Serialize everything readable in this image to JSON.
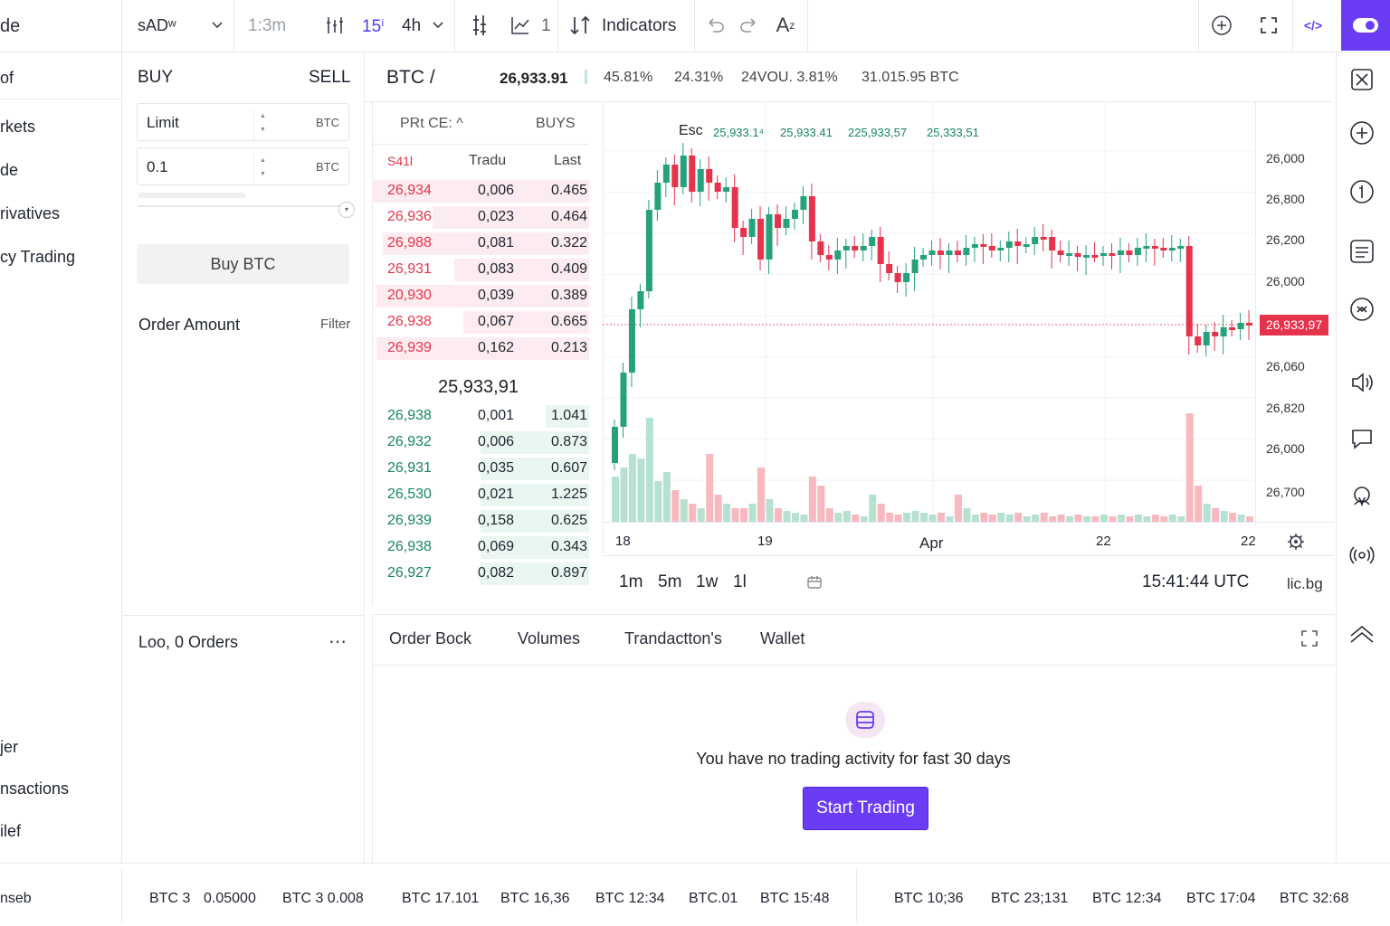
{
  "topbar": {
    "brand_partial": "de",
    "pair": "sADʷ",
    "search_placeholder": "1:3m",
    "interval_active": "15ⁱ",
    "interval_4h": "4h",
    "chart_type_count": "1",
    "indicators_label": "Indicators"
  },
  "nav": {
    "items": [
      "of",
      "rkets",
      "de",
      "rivatives",
      "cy Trading",
      "jer",
      "nsactions",
      "ilef",
      "nseb"
    ]
  },
  "order_form": {
    "buy_label": "BUY",
    "sell_label": "SELL",
    "type_value": "Limit",
    "type_unit": "BTC",
    "amount_value": "0.1",
    "amount_unit": "BTC",
    "submit_label": "Buy BTC",
    "order_amount_label": "Order Amount",
    "filter_label": "Filter",
    "orders_label": "Loo, 0 Orders",
    "more_label": "⋯"
  },
  "ticker_header": {
    "symbol": "BTC /",
    "price": "26,933.91",
    "stat1": "45.81%",
    "stat2": "24.31%",
    "stat3": "24VOU. 3.81%",
    "stat4": "31.015.95 BTC"
  },
  "orderbook": {
    "header_price": "PRt CE: ^",
    "header_buys": "BUYS",
    "col_sell": "S41l",
    "col_trade": "Tradu",
    "col_last": "Last",
    "asks": [
      {
        "p": "26,934",
        "a": "0,006",
        "l": "0.465",
        "depth": 1.0
      },
      {
        "p": "26,936",
        "a": "0,023",
        "l": "0.464",
        "depth": 0.72
      },
      {
        "p": "26,988",
        "a": "0,081",
        "l": "0.322",
        "depth": 0.95
      },
      {
        "p": "26,931",
        "a": "0,083",
        "l": "0.409",
        "depth": 0.62
      },
      {
        "p": "20,930",
        "a": "0,039",
        "l": "0.389",
        "depth": 0.98
      },
      {
        "p": "26,938",
        "a": "0,067",
        "l": "0.665",
        "depth": 0.58
      },
      {
        "p": "26,939",
        "a": "0,162",
        "l": "0.213",
        "depth": 0.98
      }
    ],
    "mid_price": "25,933,91",
    "bids": [
      {
        "p": "26,938",
        "a": "0,001",
        "l": "1.041",
        "depth": 0.2
      },
      {
        "p": "26,932",
        "a": "0,006",
        "l": "0.873",
        "depth": 0.5
      },
      {
        "p": "26,931",
        "a": "0,035",
        "l": "0.607",
        "depth": 0.5
      },
      {
        "p": "26,530",
        "a": "0,021",
        "l": "1.225",
        "depth": 0.5
      },
      {
        "p": "26,939",
        "a": "0,158",
        "l": "0.625",
        "depth": 0.5
      },
      {
        "p": "26,938",
        "a": "0,069",
        "l": "0.343",
        "depth": 0.5
      },
      {
        "p": "26,927",
        "a": "0,082",
        "l": "0.897",
        "depth": 0.5
      }
    ]
  },
  "chart": {
    "legend_esc": "Esc",
    "legend_vals": [
      "25,933.1⁴",
      "25,933.41",
      "225,933,57",
      "25,333,51"
    ],
    "price_axis": [
      "26,000",
      "26,800",
      "26,200",
      "26,000",
      "26,060",
      "26,820",
      "26,000",
      "26,700"
    ],
    "last_price_badge": "26,933,97",
    "time_axis": [
      "18",
      "19",
      "Apr",
      "22",
      "22"
    ],
    "intervals": [
      "1m",
      "5m",
      "1w",
      "1l"
    ],
    "clock": "15:41:44 UTC",
    "brand_tag": "lic.bg",
    "colors": {
      "up": "#26a17b",
      "down": "#e5334b",
      "accent": "#6a3df5"
    }
  },
  "bottom_tabs": {
    "tabs": [
      "Order Bock",
      "Volumes",
      "Trandactton's",
      "Wallet"
    ],
    "empty_text": "You have no trading activity for fast 30 days",
    "cta_label": "Start Trading"
  },
  "ticker_bar": {
    "items": [
      "BTC 3",
      "0.05000",
      "BTC 3  0.008",
      "BTC 17.101",
      "BTC 16,36",
      "BTC 12:34",
      "BTC.01",
      "BTC 15:48",
      "BTC 10;36",
      "BTC 23;131",
      "BTC 12:34",
      "BTC 17:04",
      "BTC 32:68"
    ]
  }
}
